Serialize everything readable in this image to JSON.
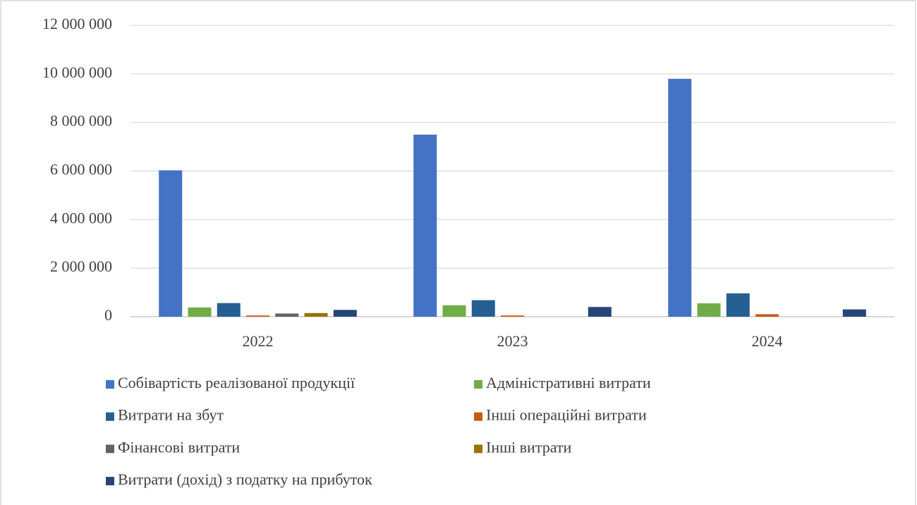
{
  "chart_data": {
    "type": "bar",
    "categories": [
      "2022",
      "2023",
      "2024"
    ],
    "series": [
      {
        "name": "Собівартість реалізованої продукції",
        "color": "#4472c4",
        "values": [
          6030000,
          7500000,
          9800000
        ]
      },
      {
        "name": "Адміністративні витрати",
        "color": "#70ad47",
        "values": [
          380000,
          470000,
          550000
        ]
      },
      {
        "name": "Витрати на збут",
        "color": "#255e91",
        "values": [
          560000,
          680000,
          960000
        ]
      },
      {
        "name": "Інші операційні витрати",
        "color": "#c55a11",
        "values": [
          50000,
          50000,
          100000
        ]
      },
      {
        "name": "Фінансові витрати",
        "color": "#636363",
        "values": [
          130000,
          0,
          0
        ]
      },
      {
        "name": "Інші витрати",
        "color": "#997300",
        "values": [
          150000,
          0,
          0
        ]
      },
      {
        "name": "Витрати (дохід) з податку на прибуток",
        "color": "#264478",
        "values": [
          280000,
          400000,
          300000
        ]
      }
    ],
    "ylim": [
      0,
      12000000
    ],
    "yticks": [
      0,
      {
        "value": 2000000,
        "label": "2 000 000"
      },
      {
        "value": 4000000,
        "label": "4 000 000"
      },
      {
        "value": 6000000,
        "label": "6 000 000"
      },
      {
        "value": 8000000,
        "label": "8 000 000"
      },
      {
        "value": 10000000,
        "label": "10 000 000"
      },
      {
        "value": 12000000,
        "label": "12 000 000"
      }
    ],
    "grid": true,
    "legend": "bottom"
  }
}
